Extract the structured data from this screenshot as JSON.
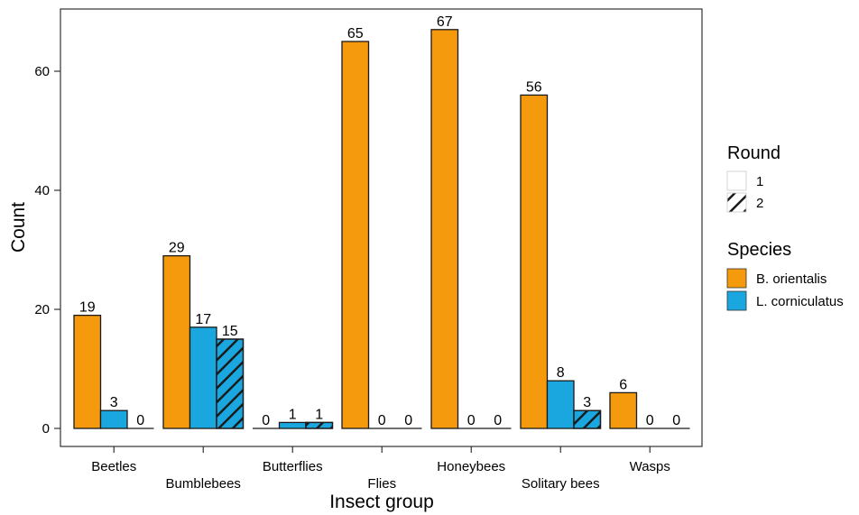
{
  "chart_data": {
    "type": "bar",
    "xlabel": "Insect group",
    "ylabel": "Count",
    "ylim": [
      0,
      70
    ],
    "yticks": [
      0,
      20,
      40,
      60
    ],
    "grid": false,
    "categories": [
      "Beetles",
      "Bumblebees",
      "Butterflies",
      "Flies",
      "Honeybees",
      "Solitary bees",
      "Wasps"
    ],
    "bars_per_category": [
      [
        {
          "species": "B. orientalis",
          "round": "1",
          "value": 19
        },
        {
          "species": "L. corniculatus",
          "round": "1",
          "value": 3
        },
        {
          "species": "L. corniculatus",
          "round": "2",
          "value": 0
        }
      ],
      [
        {
          "species": "B. orientalis",
          "round": "1",
          "value": 29
        },
        {
          "species": "L. corniculatus",
          "round": "1",
          "value": 17
        },
        {
          "species": "L. corniculatus",
          "round": "2",
          "value": 15
        }
      ],
      [
        {
          "species": "B. orientalis",
          "round": "1",
          "value": 0
        },
        {
          "species": "L. corniculatus",
          "round": "1",
          "value": 1
        },
        {
          "species": "L. corniculatus",
          "round": "2",
          "value": 1
        }
      ],
      [
        {
          "species": "B. orientalis",
          "round": "1",
          "value": 65
        },
        {
          "species": "L. corniculatus",
          "round": "1",
          "value": 0
        },
        {
          "species": "L. corniculatus",
          "round": "2",
          "value": 0
        }
      ],
      [
        {
          "species": "B. orientalis",
          "round": "1",
          "value": 67
        },
        {
          "species": "L. corniculatus",
          "round": "1",
          "value": 0
        },
        {
          "species": "L. corniculatus",
          "round": "2",
          "value": 0
        }
      ],
      [
        {
          "species": "B. orientalis",
          "round": "1",
          "value": 56
        },
        {
          "species": "L. corniculatus",
          "round": "1",
          "value": 8
        },
        {
          "species": "L. corniculatus",
          "round": "2",
          "value": 3
        }
      ],
      [
        {
          "species": "B. orientalis",
          "round": "1",
          "value": 6
        },
        {
          "species": "L. corniculatus",
          "round": "1",
          "value": 0
        },
        {
          "species": "L. corniculatus",
          "round": "2",
          "value": 0
        }
      ]
    ],
    "legend_round": {
      "title": "Round",
      "items": [
        {
          "label": "1",
          "fill": "none"
        },
        {
          "label": "2",
          "fill": "hatched"
        }
      ]
    },
    "legend_species": {
      "title": "Species",
      "items": [
        {
          "label": "B. orientalis",
          "color": "#F59A0C"
        },
        {
          "label": "L. corniculatus",
          "color": "#1AA7E0"
        }
      ]
    },
    "legend_placement": "right"
  }
}
